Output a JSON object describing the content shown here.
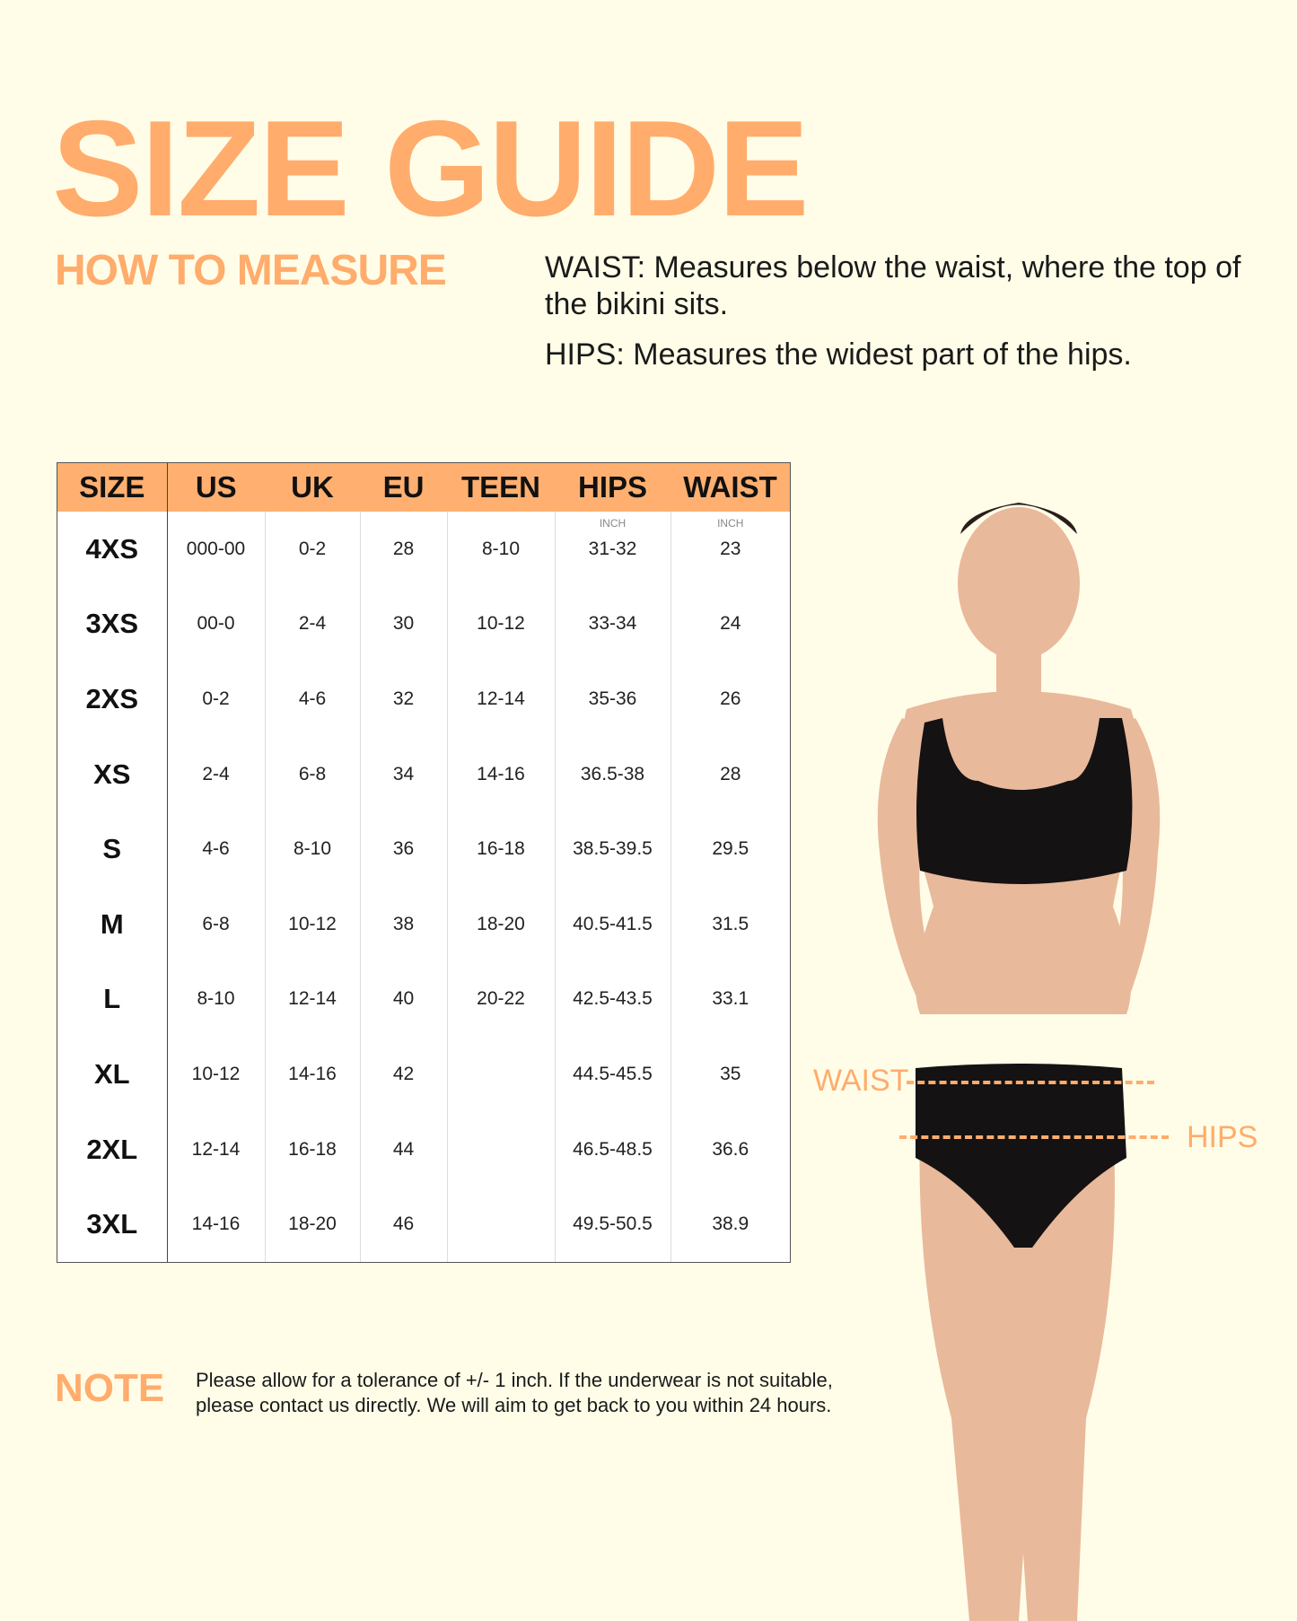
{
  "title": "SIZE GUIDE",
  "subtitle": "HOW TO MEASURE",
  "instructions": {
    "waist": "WAIST: Measures below the waist, where the top of the bikini sits.",
    "hips": "HIPS: Measures the widest part of the hips."
  },
  "table": {
    "headers": [
      "SIZE",
      "US",
      "UK",
      "EU",
      "TEEN",
      "HIPS",
      "WAIST"
    ],
    "units": {
      "hips": "INCH",
      "waist": "INCH"
    },
    "rows": [
      [
        "4XS",
        "000-00",
        "0-2",
        "28",
        "8-10",
        "31-32",
        "23"
      ],
      [
        "3XS",
        "00-0",
        "2-4",
        "30",
        "10-12",
        "33-34",
        "24"
      ],
      [
        "2XS",
        "0-2",
        "4-6",
        "32",
        "12-14",
        "35-36",
        "26"
      ],
      [
        "XS",
        "2-4",
        "6-8",
        "34",
        "14-16",
        "36.5-38",
        "28"
      ],
      [
        "S",
        "4-6",
        "8-10",
        "36",
        "16-18",
        "38.5-39.5",
        "29.5"
      ],
      [
        "M",
        "6-8",
        "10-12",
        "38",
        "18-20",
        "40.5-41.5",
        "31.5"
      ],
      [
        "L",
        "8-10",
        "12-14",
        "40",
        "20-22",
        "42.5-43.5",
        "33.1"
      ],
      [
        "XL",
        "10-12",
        "14-16",
        "42",
        "",
        "44.5-45.5",
        "35"
      ],
      [
        "2XL",
        "12-14",
        "16-18",
        "44",
        "",
        "46.5-48.5",
        "36.6"
      ],
      [
        "3XL",
        "14-16",
        "18-20",
        "46",
        "",
        "49.5-50.5",
        "38.9"
      ]
    ]
  },
  "note": {
    "label": "NOTE",
    "text": "Please allow for a tolerance of +/- 1 inch. If the underwear is not suitable, please contact us directly. We will aim to get back to you within 24 hours."
  },
  "figure": {
    "waist_label": "WAIST",
    "hips_label": "HIPS"
  },
  "colors": {
    "accent": "#ffac6c",
    "background": "#fffde8",
    "header": "#ffb070"
  }
}
